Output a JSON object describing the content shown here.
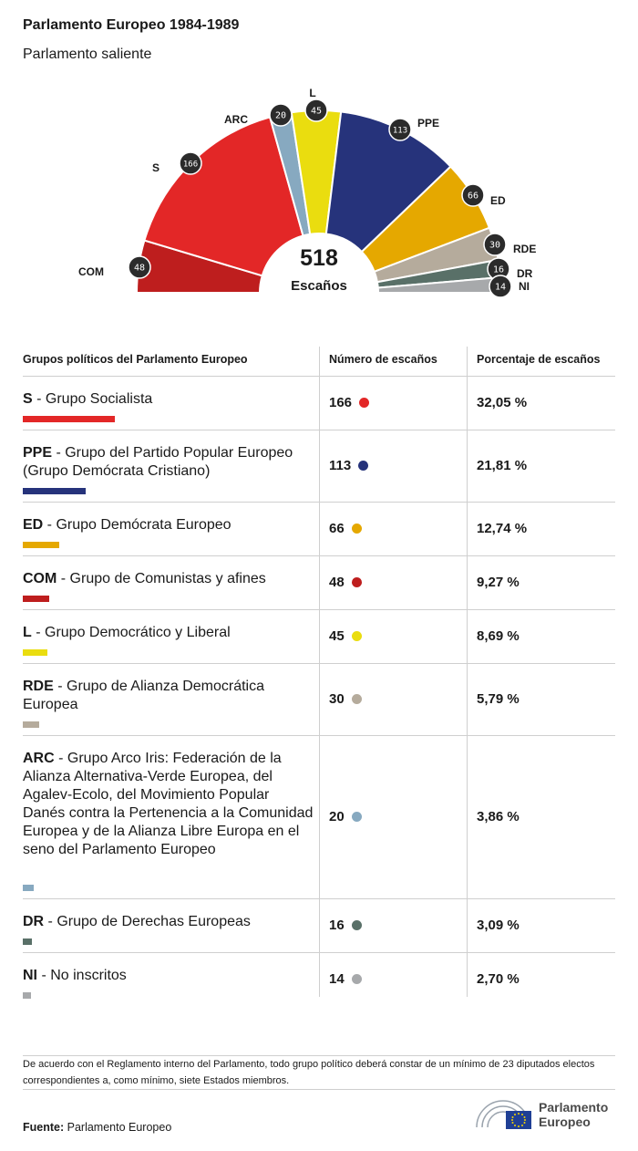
{
  "header": {
    "title": "Parlamento Europeo 1984-1989",
    "subtitle": "Parlamento saliente"
  },
  "center": {
    "total": "518",
    "label": "Escaños"
  },
  "chart_data": {
    "type": "hemicycle",
    "total": 518,
    "series": [
      {
        "name": "COM",
        "value": 48,
        "color": "#be1e1e"
      },
      {
        "name": "S",
        "value": 166,
        "color": "#e32727"
      },
      {
        "name": "ARC",
        "value": 20,
        "color": "#87a9c0"
      },
      {
        "name": "L",
        "value": 45,
        "color": "#eadd0f"
      },
      {
        "name": "PPE",
        "value": 113,
        "color": "#26337b"
      },
      {
        "name": "ED",
        "value": 66,
        "color": "#e5a800"
      },
      {
        "name": "RDE",
        "value": 30,
        "color": "#b5ab9c"
      },
      {
        "name": "DR",
        "value": 16,
        "color": "#597068"
      },
      {
        "name": "NI",
        "value": 14,
        "color": "#a7a9ab"
      }
    ]
  },
  "table": {
    "headers": [
      "Grupos políticos del Parlamento Europeo",
      "Número de escaños",
      "Porcentaje de escaños"
    ],
    "rows": [
      {
        "abbr": "S",
        "desc": " - Grupo Socialista",
        "seats": "166",
        "pct": "32,05 %",
        "color": "#e32727",
        "share": 0.3205
      },
      {
        "abbr": "PPE",
        "desc": " - Grupo del Partido Popular Europeo (Grupo Demócrata Cristiano)",
        "seats": "113",
        "pct": "21,81 %",
        "color": "#26337b",
        "share": 0.2181
      },
      {
        "abbr": "ED",
        "desc": " - Grupo Demócrata Europeo",
        "seats": "66",
        "pct": "12,74 %",
        "color": "#e5a800",
        "share": 0.1274
      },
      {
        "abbr": "COM",
        "desc": " - Grupo de Comunistas y afines",
        "seats": "48",
        "pct": "9,27 %",
        "color": "#be1e1e",
        "share": 0.0927
      },
      {
        "abbr": "L",
        "desc": " - Grupo Democrático y Liberal",
        "seats": "45",
        "pct": "8,69 %",
        "color": "#eadd0f",
        "share": 0.0869
      },
      {
        "abbr": "RDE",
        "desc": " - Grupo de Alianza Democrática Europea",
        "seats": "30",
        "pct": "5,79 %",
        "color": "#b5ab9c",
        "share": 0.0579
      },
      {
        "abbr": "ARC",
        "desc": " - Grupo Arco Iris: Federación de la Alianza Alternativa-Verde Europea, del Agalev-Ecolo, del Movimiento Popular Danés contra la Pertenencia a la Comunidad Europea y de la Alianza Libre Europa en el seno del Parlamento Europeo",
        "seats": "20",
        "pct": "3,86 %",
        "color": "#87a9c0",
        "share": 0.0386
      },
      {
        "abbr": "DR",
        "desc": " - Grupo de Derechas Europeas",
        "seats": "16",
        "pct": "3,09 %",
        "color": "#597068",
        "share": 0.0309
      },
      {
        "abbr": "NI",
        "desc": " - No inscritos",
        "seats": "14",
        "pct": "2,70 %",
        "color": "#a7a9ab",
        "share": 0.027
      }
    ]
  },
  "footer": {
    "note": "De acuerdo con el Reglamento interno del Parlamento, todo grupo político deberá constar de un mínimo de 23 diputados electos correspondientes a, como mínimo, siete Estados miembros.",
    "source_label": "Fuente:",
    "source_value": " Parlamento Europeo",
    "logo_line1": "Parlamento",
    "logo_line2": "Europeo"
  }
}
